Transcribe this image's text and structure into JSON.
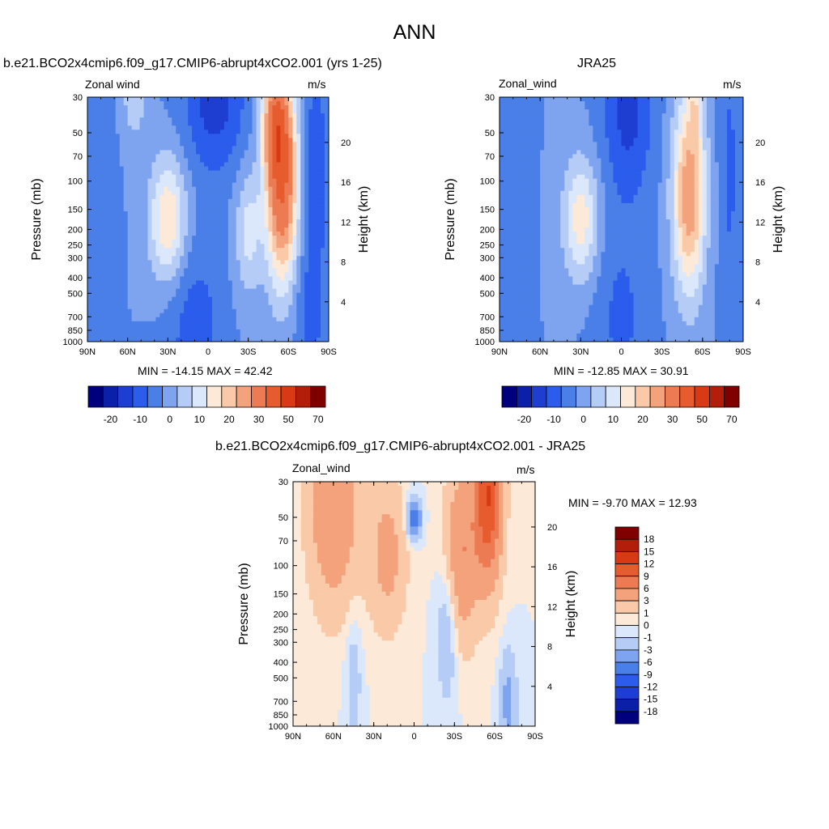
{
  "page": {
    "title": "ANN"
  },
  "chart_data": [
    {
      "type": "heatmap",
      "title": "b.e21.BCO2x4cmip6.f09_g17.CMIP6-abrupt4xCO2.001 (yrs 1-25)",
      "field_label": "Zonal wind",
      "units": "m/s",
      "xlabel": "",
      "ylabel": "Pressure (mb)",
      "y2label": "Height (km)",
      "x_ticks": [
        "90N",
        "60N",
        "30N",
        "0",
        "30S",
        "60S",
        "90S"
      ],
      "y_ticks": [
        30,
        50,
        70,
        100,
        150,
        200,
        250,
        300,
        400,
        500,
        700,
        850,
        1000
      ],
      "y2_ticks": [
        20,
        16,
        12,
        8,
        4
      ],
      "stats": "MIN = -14.15  MAX =  42.42",
      "min": -14.15,
      "max": 42.42,
      "colorbar": {
        "orientation": "horizontal",
        "labels": [
          "-20",
          "-10",
          "0",
          "10",
          "20",
          "30",
          "50",
          "70"
        ]
      }
    },
    {
      "type": "heatmap",
      "title": "JRA25",
      "field_label": "Zonal_wind",
      "units": "m/s",
      "xlabel": "",
      "ylabel": "Pressure (mb)",
      "y2label": "Height (km)",
      "x_ticks": [
        "90N",
        "60N",
        "30N",
        "0",
        "30S",
        "60S",
        "90S"
      ],
      "y_ticks": [
        30,
        50,
        70,
        100,
        150,
        200,
        250,
        300,
        400,
        500,
        700,
        850,
        1000
      ],
      "y2_ticks": [
        20,
        16,
        12,
        8,
        4
      ],
      "stats": "MIN = -12.85  MAX =  30.91",
      "min": -12.85,
      "max": 30.91,
      "colorbar": {
        "orientation": "horizontal",
        "labels": [
          "-20",
          "-10",
          "0",
          "10",
          "20",
          "30",
          "50",
          "70"
        ]
      }
    },
    {
      "type": "heatmap",
      "title": "b.e21.BCO2x4cmip6.f09_g17.CMIP6-abrupt4xCO2.001 - JRA25",
      "field_label": "Zonal_wind",
      "units": "m/s",
      "xlabel": "",
      "ylabel": "Pressure (mb)",
      "y2label": "Height (km)",
      "x_ticks": [
        "90N",
        "60N",
        "30N",
        "0",
        "30S",
        "60S",
        "90S"
      ],
      "y_ticks": [
        30,
        50,
        70,
        100,
        150,
        200,
        250,
        300,
        400,
        500,
        700,
        850,
        1000
      ],
      "y2_ticks": [
        20,
        16,
        12,
        8,
        4
      ],
      "stats": "MIN =  -9.70  MAX =  12.93",
      "min": -9.7,
      "max": 12.93,
      "colorbar": {
        "orientation": "vertical",
        "labels": [
          "18",
          "15",
          "12",
          "9",
          "6",
          "3",
          "1",
          "0",
          "-1",
          "-3",
          "-6",
          "-9",
          "-12",
          "-15",
          "-18"
        ]
      }
    }
  ],
  "palette": [
    "#00007f",
    "#0c1fa8",
    "#1e3ed2",
    "#2b5cec",
    "#4a7fe8",
    "#7ea4ef",
    "#b5ccf6",
    "#dbe7fb",
    "#fde9d7",
    "#f9c9a8",
    "#f3a27c",
    "#ec7a52",
    "#e75c2f",
    "#d83a16",
    "#b31e0a",
    "#800000"
  ],
  "colors": {
    "positive": "#f08050",
    "negative": "#2b5cec",
    "neutral_light": "#dbe7fb"
  }
}
